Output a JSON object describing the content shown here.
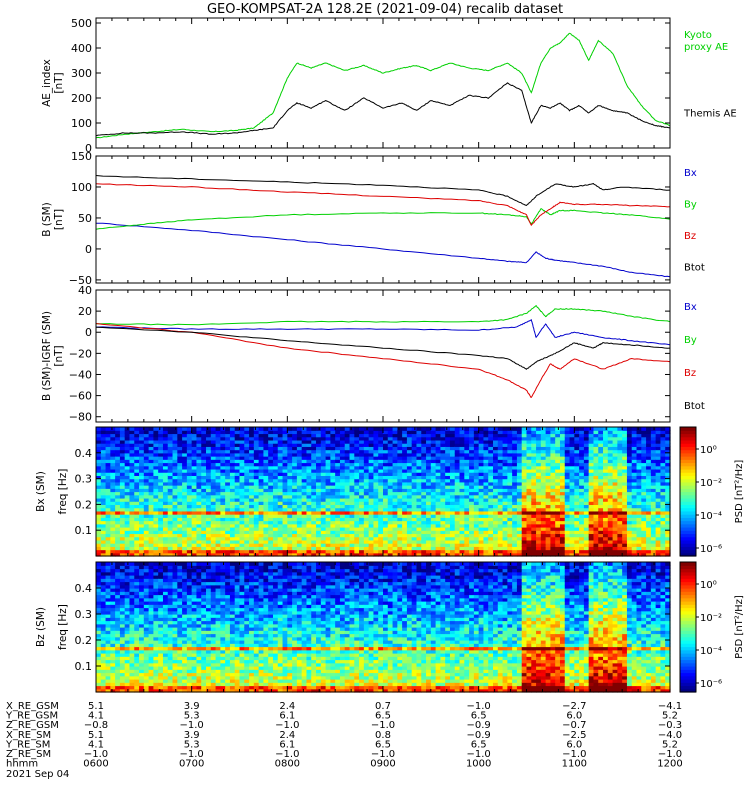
{
  "chart_data": {
    "title": "GEO-KOMPSAT-2A 128.2E (2021-09-04) recalib dataset",
    "x_ticks": [
      "0600",
      "0700",
      "0800",
      "0900",
      "1000",
      "1100",
      "1200"
    ],
    "panels": [
      {
        "type": "line",
        "ylabel": "AE_index\n[nT]",
        "ylim": [
          0,
          520
        ],
        "yticks": [
          0,
          100,
          200,
          300,
          400,
          500
        ],
        "legend": [
          {
            "text": "Kyoto\nproxy AE",
            "color": "#00d000"
          },
          {
            "text": "Themis AE",
            "color": "#000000"
          }
        ],
        "series": [
          {
            "name": "Kyoto proxy AE",
            "color": "#00d000",
            "x": [
              6.0,
              6.3,
              6.6,
              6.9,
              7.2,
              7.45,
              7.65,
              7.85,
              8.0,
              8.1,
              8.25,
              8.4,
              8.6,
              8.8,
              9.0,
              9.2,
              9.35,
              9.5,
              9.7,
              9.9,
              10.1,
              10.3,
              10.45,
              10.55,
              10.65,
              10.75,
              10.85,
              10.95,
              11.05,
              11.15,
              11.25,
              11.4,
              11.55,
              11.7,
              11.85,
              12.0
            ],
            "y": [
              40,
              55,
              65,
              75,
              65,
              70,
              80,
              140,
              280,
              340,
              320,
              340,
              310,
              330,
              300,
              320,
              330,
              310,
              340,
              320,
              310,
              340,
              300,
              220,
              340,
              400,
              420,
              460,
              430,
              350,
              430,
              380,
              250,
              170,
              110,
              90
            ]
          },
          {
            "name": "Themis AE",
            "color": "#000000",
            "x": [
              6.0,
              6.3,
              6.6,
              6.9,
              7.2,
              7.45,
              7.65,
              7.85,
              8.0,
              8.1,
              8.25,
              8.4,
              8.6,
              8.8,
              9.0,
              9.2,
              9.35,
              9.5,
              9.7,
              9.9,
              10.1,
              10.3,
              10.45,
              10.55,
              10.65,
              10.75,
              10.85,
              10.95,
              11.05,
              11.15,
              11.25,
              11.4,
              11.55,
              11.7,
              11.85,
              12.0
            ],
            "y": [
              50,
              60,
              60,
              65,
              55,
              60,
              70,
              80,
              150,
              180,
              160,
              190,
              150,
              200,
              160,
              180,
              150,
              190,
              170,
              210,
              200,
              260,
              230,
              100,
              170,
              160,
              180,
              150,
              170,
              140,
              170,
              150,
              140,
              110,
              90,
              80
            ]
          }
        ]
      },
      {
        "type": "line",
        "ylabel": "B  (SM)\n[nT]",
        "ylim": [
          -55,
          150
        ],
        "yticks": [
          -50,
          0,
          50,
          100,
          150
        ],
        "legend": [
          {
            "text": "Bx",
            "color": "#0000cc"
          },
          {
            "text": "By",
            "color": "#00d000"
          },
          {
            "text": "Bz",
            "color": "#dd0000"
          },
          {
            "text": "Btot",
            "color": "#000000"
          }
        ],
        "series": [
          {
            "name": "Bx",
            "color": "#0000cc",
            "x": [
              6.0,
              7.0,
              8.0,
              9.0,
              10.0,
              10.3,
              10.5,
              10.6,
              10.7,
              10.8,
              11.0,
              11.3,
              11.6,
              12.0
            ],
            "y": [
              42,
              30,
              15,
              0,
              -15,
              -20,
              -22,
              -5,
              -15,
              -18,
              -22,
              -28,
              -38,
              -45
            ]
          },
          {
            "name": "By",
            "color": "#00d000",
            "x": [
              6.0,
              6.5,
              7.0,
              8.0,
              9.0,
              10.0,
              10.3,
              10.5,
              10.55,
              10.65,
              10.75,
              10.85,
              11.0,
              11.3,
              11.6,
              12.0
            ],
            "y": [
              32,
              40,
              47,
              55,
              58,
              58,
              55,
              52,
              40,
              65,
              55,
              62,
              62,
              58,
              55,
              48
            ]
          },
          {
            "name": "Bz",
            "color": "#dd0000",
            "x": [
              6.0,
              7.0,
              8.0,
              9.0,
              10.0,
              10.3,
              10.5,
              10.55,
              10.65,
              10.75,
              10.85,
              11.0,
              11.3,
              11.6,
              12.0
            ],
            "y": [
              105,
              100,
              92,
              85,
              78,
              70,
              55,
              38,
              55,
              65,
              75,
              72,
              72,
              70,
              68
            ]
          },
          {
            "name": "Btot",
            "color": "#000000",
            "x": [
              6.0,
              7.0,
              8.0,
              9.0,
              10.0,
              10.3,
              10.5,
              10.6,
              10.8,
              11.0,
              11.2,
              11.3,
              11.5,
              12.0
            ],
            "y": [
              118,
              113,
              108,
              103,
              95,
              85,
              70,
              85,
              105,
              100,
              105,
              95,
              100,
              95
            ]
          }
        ]
      },
      {
        "type": "line",
        "ylabel": "B (SM)-IGRF (SM)\n[nT]",
        "ylim": [
          -85,
          40
        ],
        "yticks": [
          -80,
          -60,
          -40,
          -20,
          0,
          20,
          40
        ],
        "legend": [
          {
            "text": "Bx",
            "color": "#0000cc"
          },
          {
            "text": "By",
            "color": "#00d000"
          },
          {
            "text": "Bz",
            "color": "#dd0000"
          },
          {
            "text": "Btot",
            "color": "#000000"
          }
        ],
        "series": [
          {
            "name": "Bx",
            "color": "#0000cc",
            "x": [
              6.0,
              7.0,
              8.0,
              9.0,
              10.0,
              10.4,
              10.55,
              10.6,
              10.7,
              10.8,
              11.0,
              11.3,
              11.6,
              12.0
            ],
            "y": [
              5,
              3,
              3,
              3,
              2,
              5,
              12,
              -5,
              8,
              -5,
              0,
              -5,
              -8,
              -12
            ]
          },
          {
            "name": "By",
            "color": "#00d000",
            "x": [
              6.0,
              7.0,
              8.0,
              9.0,
              10.0,
              10.3,
              10.5,
              10.6,
              10.7,
              10.8,
              11.0,
              11.3,
              11.6,
              12.0
            ],
            "y": [
              8,
              7,
              10,
              10,
              10,
              12,
              18,
              25,
              15,
              22,
              22,
              20,
              15,
              10
            ]
          },
          {
            "name": "Bz",
            "color": "#dd0000",
            "x": [
              6.0,
              7.0,
              8.0,
              9.0,
              10.0,
              10.3,
              10.5,
              10.55,
              10.65,
              10.75,
              10.85,
              11.0,
              11.3,
              11.6,
              12.0
            ],
            "y": [
              8,
              0,
              -15,
              -25,
              -35,
              -45,
              -55,
              -62,
              -45,
              -30,
              -35,
              -25,
              -35,
              -25,
              -28
            ]
          },
          {
            "name": "Btot",
            "color": "#000000",
            "x": [
              6.0,
              7.0,
              8.0,
              9.0,
              10.0,
              10.3,
              10.5,
              10.6,
              10.8,
              11.0,
              11.2,
              11.3,
              11.6,
              12.0
            ],
            "y": [
              5,
              0,
              -8,
              -15,
              -22,
              -25,
              -35,
              -28,
              -20,
              -10,
              -15,
              -10,
              -12,
              -15
            ]
          }
        ]
      },
      {
        "type": "heatmap",
        "ylabel": "Bx (SM)\nfreq [Hz]",
        "ylim": [
          0,
          0.5
        ],
        "yticks": [
          "0.1",
          "0.2",
          "0.3",
          "0.4"
        ],
        "colorbar_label": "PSD [nT²/Hz]",
        "colorbar_ticks": [
          "10⁰",
          "10⁻²",
          "10⁻⁴",
          "10⁻⁶"
        ],
        "bright_line_freq": 0.17,
        "event_intervals": [
          [
            10.45,
            10.9
          ],
          [
            11.15,
            11.55
          ]
        ]
      },
      {
        "type": "heatmap",
        "ylabel": "Bz (SM)\nfreq [Hz]",
        "ylim": [
          0,
          0.5
        ],
        "yticks": [
          "0.1",
          "0.2",
          "0.3",
          "0.4"
        ],
        "colorbar_label": "PSD [nT²/Hz]",
        "colorbar_ticks": [
          "10⁰",
          "10⁻²",
          "10⁻⁴",
          "10⁻⁶"
        ],
        "bright_line_freq": 0.17,
        "event_intervals": [
          [
            10.45,
            10.9
          ],
          [
            11.15,
            11.55
          ]
        ]
      }
    ],
    "ephemeris": {
      "row_labels": [
        "X_RE_GSM",
        "Y_RE_GSM",
        "Z_RE_GSM",
        "X_RE_SM",
        "Y_RE_SM",
        "Z_RE_SM",
        "hhmm"
      ],
      "date_label": "2021 Sep 04",
      "rows": [
        [
          "5.1",
          "3.9",
          "2.4",
          "0.7",
          "-1.0",
          "-2.7",
          "-4.1"
        ],
        [
          "4.1",
          "5.3",
          "6.1",
          "6.5",
          "6.5",
          "6.0",
          "5.2"
        ],
        [
          "-0.8",
          "-1.0",
          "-1.0",
          "-1.0",
          "-0.9",
          "-0.7",
          "-0.3"
        ],
        [
          "5.1",
          "3.9",
          "2.4",
          "0.8",
          "-0.9",
          "-2.5",
          "-4.0"
        ],
        [
          "4.1",
          "5.3",
          "6.1",
          "6.5",
          "6.5",
          "6.0",
          "5.2"
        ],
        [
          "-1.0",
          "-1.0",
          "-1.0",
          "-1.0",
          "-1.0",
          "-1.0",
          "-1.0"
        ],
        [
          "0600",
          "0700",
          "0800",
          "0900",
          "1000",
          "1100",
          "1200"
        ]
      ]
    }
  }
}
